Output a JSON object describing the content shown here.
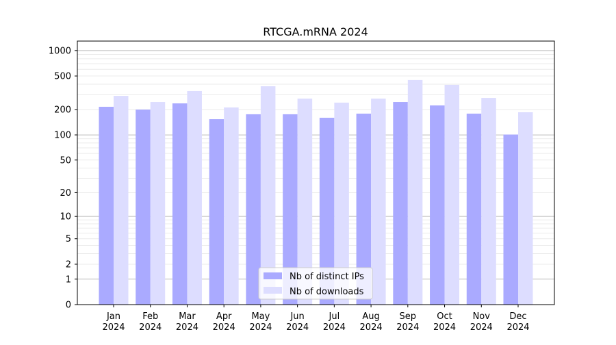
{
  "chart_data": {
    "type": "bar",
    "title": "RTCGA.mRNA 2024",
    "xlabel": "",
    "ylabel": "",
    "yscale": "log(1+y)",
    "ylim": [
      0,
      1300
    ],
    "yticks": [
      0,
      1,
      2,
      5,
      10,
      20,
      50,
      100,
      200,
      500,
      1000
    ],
    "grid": true,
    "legend_position": "bottom-center",
    "categories": [
      "Jan\n2024",
      "Feb\n2024",
      "Mar\n2024",
      "Apr\n2024",
      "May\n2024",
      "Jun\n2024",
      "Jul\n2024",
      "Aug\n2024",
      "Sep\n2024",
      "Oct\n2024",
      "Nov\n2024",
      "Dec\n2024"
    ],
    "series": [
      {
        "name": "Nb of distinct IPs",
        "color": "#aaaaff",
        "values": [
          216,
          200,
          237,
          154,
          176,
          176,
          160,
          179,
          246,
          224,
          179,
          101
        ]
      },
      {
        "name": "Nb of downloads",
        "color": "#ddddff",
        "values": [
          291,
          246,
          332,
          212,
          378,
          270,
          242,
          270,
          448,
          393,
          275,
          186
        ]
      }
    ]
  }
}
